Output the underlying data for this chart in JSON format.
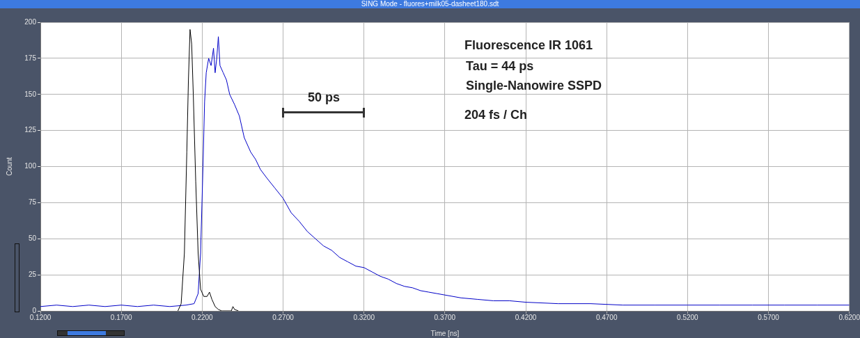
{
  "chart_data": {
    "type": "line",
    "title": "SING Mode - fluores+milk05-dasheet180.sdt",
    "xlabel": "Time [ns]",
    "ylabel": "Count",
    "xlim": [
      0.12,
      0.62
    ],
    "xticks": [
      {
        "value": 0.12,
        "label": "0.1200"
      },
      {
        "value": 0.17,
        "label": "0.1700"
      },
      {
        "value": 0.22,
        "label": "0.2200"
      },
      {
        "value": 0.27,
        "label": "0.2700"
      },
      {
        "value": 0.32,
        "label": "0.3200"
      },
      {
        "value": 0.37,
        "label": "0.3700"
      },
      {
        "value": 0.42,
        "label": "0.4200"
      },
      {
        "value": 0.47,
        "label": "0.4700"
      },
      {
        "value": 0.52,
        "label": "0.5200"
      },
      {
        "value": 0.57,
        "label": "0.5700"
      },
      {
        "value": 0.62,
        "label": "0.6200"
      }
    ],
    "ylim": [
      0,
      200
    ],
    "yticks": [
      0,
      25,
      50,
      75,
      100,
      125,
      150,
      175,
      200
    ],
    "grid": true,
    "legend": false,
    "marker": "none",
    "line_style": "solid",
    "annotations": [
      "Fluorescence IR 1061",
      "Tau = 44 ps",
      "Single-Nanowire SSPD",
      "204 fs / Ch",
      "50 ps"
    ],
    "series": [
      {
        "color": "#0000c8",
        "x": [
          0.12,
          0.13,
          0.14,
          0.15,
          0.16,
          0.17,
          0.18,
          0.19,
          0.2,
          0.21,
          0.215,
          0.2175,
          0.219,
          0.2205,
          0.2215,
          0.2225,
          0.224,
          0.2255,
          0.227,
          0.228,
          0.229,
          0.23,
          0.231,
          0.233,
          0.235,
          0.237,
          0.24,
          0.243,
          0.246,
          0.25,
          0.253,
          0.256,
          0.26,
          0.265,
          0.27,
          0.275,
          0.28,
          0.285,
          0.29,
          0.295,
          0.3,
          0.305,
          0.31,
          0.315,
          0.32,
          0.325,
          0.33,
          0.335,
          0.34,
          0.345,
          0.35,
          0.355,
          0.36,
          0.365,
          0.37,
          0.38,
          0.39,
          0.4,
          0.41,
          0.42,
          0.44,
          0.46,
          0.48,
          0.5,
          0.52,
          0.54,
          0.56,
          0.58,
          0.6,
          0.62
        ],
        "values": [
          3,
          4,
          3,
          4,
          3,
          4,
          3,
          4,
          3,
          4,
          5,
          12,
          40,
          100,
          145,
          165,
          175,
          170,
          182,
          165,
          175,
          190,
          170,
          165,
          160,
          150,
          143,
          135,
          120,
          110,
          105,
          98,
          92,
          85,
          78,
          68,
          62,
          55,
          50,
          45,
          42,
          37,
          34,
          31,
          30,
          27,
          24,
          22,
          19,
          17,
          16,
          14,
          13,
          12,
          11,
          9,
          8,
          7,
          7,
          6,
          5,
          5,
          4,
          4,
          4,
          4,
          4,
          4,
          4,
          4
        ]
      },
      {
        "color": "#000000",
        "x": [
          0.205,
          0.207,
          0.209,
          0.2105,
          0.2115,
          0.2125,
          0.2135,
          0.2145,
          0.216,
          0.2175,
          0.219,
          0.221,
          0.223,
          0.2245,
          0.226,
          0.228,
          0.23,
          0.232,
          0.238,
          0.239,
          0.24,
          0.2424
        ],
        "values": [
          0,
          5,
          40,
          110,
          160,
          195,
          185,
          150,
          90,
          40,
          15,
          10,
          10,
          13,
          8,
          3,
          1,
          0,
          0,
          3,
          1,
          0
        ]
      }
    ]
  }
}
